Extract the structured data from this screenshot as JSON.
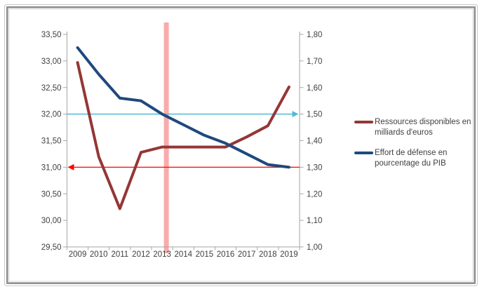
{
  "chart_data": {
    "type": "line",
    "title": "",
    "x_categories": [
      "2009",
      "2010",
      "2011",
      "2012",
      "2013",
      "2014",
      "2015",
      "2016",
      "2017",
      "2018",
      "2019"
    ],
    "series": [
      {
        "name": "Ressources disponibles en milliards d'euros",
        "axis": "left",
        "color": "#943735",
        "values": [
          32.97,
          31.2,
          30.22,
          31.28,
          31.38,
          31.38,
          31.38,
          31.38,
          31.57,
          31.78,
          32.51
        ]
      },
      {
        "name": "Effort de défense en pourcentage du PIB",
        "axis": "right",
        "color": "#1F497D",
        "values": [
          1.75,
          1.65,
          1.56,
          1.55,
          1.5,
          1.46,
          1.42,
          1.39,
          1.35,
          1.31,
          1.3
        ]
      }
    ],
    "left_axis": {
      "min": 29.5,
      "max": 33.5,
      "step": 0.5,
      "tick_labels": [
        "33,50",
        "33,00",
        "32,50",
        "32,00",
        "31,50",
        "31,00",
        "30,50",
        "30,00",
        "29,50"
      ]
    },
    "right_axis": {
      "min": 1.0,
      "max": 1.8,
      "step": 0.1,
      "tick_labels": [
        "1,80",
        "1,70",
        "1,60",
        "1,50",
        "1,40",
        "1,30",
        "1,20",
        "1,10",
        "1,00"
      ]
    },
    "grid": false,
    "annotations": {
      "teal_arrow": {
        "axis": "right",
        "value": 1.5,
        "direction": "right",
        "color": "#4FBBD6"
      },
      "red_arrow": {
        "axis": "left",
        "value": 31.0,
        "direction": "left",
        "color": "#FF0000"
      },
      "pink_band": {
        "x_category": "2013",
        "color": "#F9ABAB"
      }
    },
    "legend": {
      "position": "right",
      "entries": [
        {
          "label": "Ressources disponibles en milliards d'euros",
          "color": "#943735"
        },
        {
          "label": "Effort de défense en pourcentage du PIB",
          "color": "#1F497D"
        }
      ]
    },
    "style": {
      "axis_color": "#A6A6A6",
      "text_color": "#404040"
    }
  }
}
